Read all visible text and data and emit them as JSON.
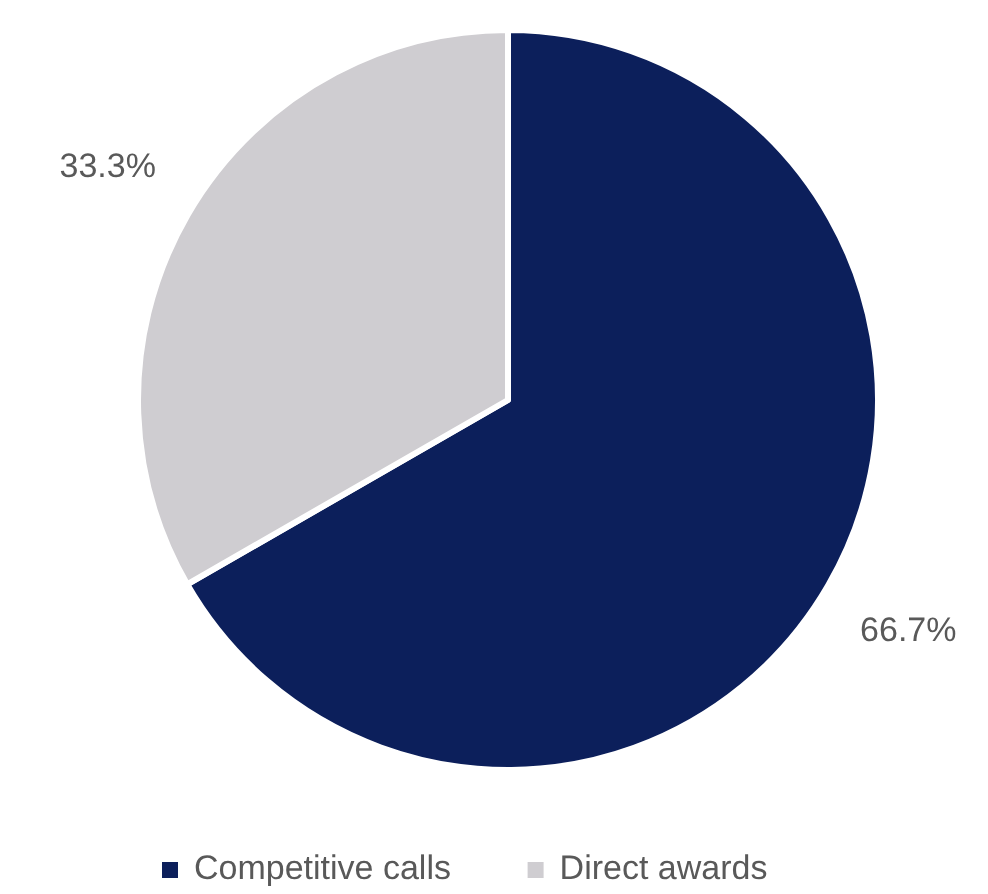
{
  "chart_data": {
    "type": "pie",
    "categories": [
      "Competitive calls",
      "Direct awards"
    ],
    "values": [
      66.7,
      33.3
    ],
    "colors": [
      "#0c1f5b",
      "#cfcdd1"
    ],
    "value_labels": [
      "66.7%",
      "33.3%"
    ],
    "legend": "bottom"
  }
}
